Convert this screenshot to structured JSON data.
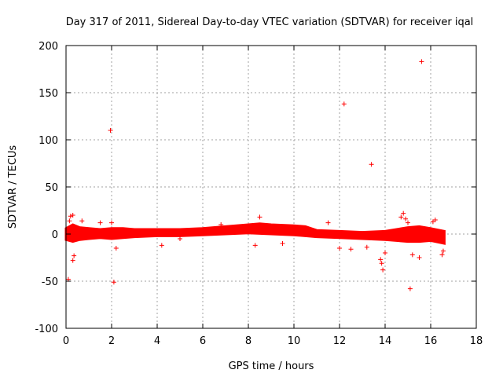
{
  "chart_data": {
    "type": "scatter",
    "title": "Day 317 of 2011, Sidereal Day-to-day VTEC variation (SDTVAR) for receiver iqal",
    "xlabel": "GPS time / hours",
    "ylabel": "SDTVAR / TECUs",
    "xlim": [
      0,
      18
    ],
    "ylim": [
      -100,
      200
    ],
    "xticks": [
      0,
      2,
      4,
      6,
      8,
      10,
      12,
      14,
      16,
      18
    ],
    "yticks": [
      -100,
      -50,
      0,
      50,
      100,
      150,
      200
    ],
    "grid": true,
    "marker": "+",
    "color": "#ff0000",
    "band": {
      "x_start": 0.0,
      "x_end": 16.6,
      "upper": [
        [
          0,
          6
        ],
        [
          0.3,
          10
        ],
        [
          0.6,
          7
        ],
        [
          1,
          6
        ],
        [
          1.5,
          5
        ],
        [
          2,
          6
        ],
        [
          2.5,
          6
        ],
        [
          3,
          5
        ],
        [
          4,
          5
        ],
        [
          5,
          5
        ],
        [
          6,
          6
        ],
        [
          7,
          8
        ],
        [
          8,
          10
        ],
        [
          8.5,
          11
        ],
        [
          9,
          10
        ],
        [
          10,
          9
        ],
        [
          10.5,
          8
        ],
        [
          11,
          4
        ],
        [
          12,
          3
        ],
        [
          13,
          2
        ],
        [
          14,
          3
        ],
        [
          15,
          7
        ],
        [
          15.5,
          8
        ],
        [
          16,
          6
        ],
        [
          16.6,
          3
        ]
      ],
      "lower": [
        [
          0,
          -6
        ],
        [
          0.3,
          -8
        ],
        [
          0.6,
          -6
        ],
        [
          1,
          -5
        ],
        [
          1.5,
          -4
        ],
        [
          2,
          -5
        ],
        [
          2.5,
          -4
        ],
        [
          3,
          -3
        ],
        [
          4,
          -2
        ],
        [
          5,
          -2
        ],
        [
          6,
          -1
        ],
        [
          7,
          0
        ],
        [
          8,
          1
        ],
        [
          9,
          0
        ],
        [
          10,
          -1
        ],
        [
          10.5,
          -2
        ],
        [
          11,
          -3
        ],
        [
          12,
          -4
        ],
        [
          13,
          -5
        ],
        [
          14,
          -6
        ],
        [
          15,
          -8
        ],
        [
          15.5,
          -8
        ],
        [
          16,
          -7
        ],
        [
          16.6,
          -10
        ]
      ]
    },
    "outliers": [
      [
        15.6,
        183
      ],
      [
        12.2,
        138
      ],
      [
        1.95,
        110
      ],
      [
        13.4,
        74
      ],
      [
        0.1,
        -48
      ],
      [
        2.1,
        -51
      ],
      [
        15.1,
        -58
      ],
      [
        0.3,
        20
      ],
      [
        0.2,
        19
      ],
      [
        0.3,
        -28
      ],
      [
        0.35,
        -23
      ],
      [
        0.15,
        14
      ],
      [
        0.7,
        14
      ],
      [
        1.5,
        12
      ],
      [
        2.0,
        12
      ],
      [
        2.2,
        -15
      ],
      [
        4.2,
        -12
      ],
      [
        5.0,
        -5
      ],
      [
        6.8,
        10
      ],
      [
        8.5,
        18
      ],
      [
        8.3,
        -12
      ],
      [
        9.5,
        -10
      ],
      [
        11.5,
        12
      ],
      [
        12.0,
        -15
      ],
      [
        12.5,
        -16
      ],
      [
        13.2,
        -14
      ],
      [
        13.8,
        -27
      ],
      [
        13.9,
        -38
      ],
      [
        13.85,
        -31
      ],
      [
        14.0,
        -20
      ],
      [
        14.7,
        18
      ],
      [
        14.8,
        22
      ],
      [
        14.9,
        16
      ],
      [
        15.0,
        12
      ],
      [
        15.2,
        -22
      ],
      [
        15.5,
        -25
      ],
      [
        16.2,
        15
      ],
      [
        16.1,
        13
      ],
      [
        16.5,
        -22
      ],
      [
        16.55,
        -18
      ]
    ]
  }
}
